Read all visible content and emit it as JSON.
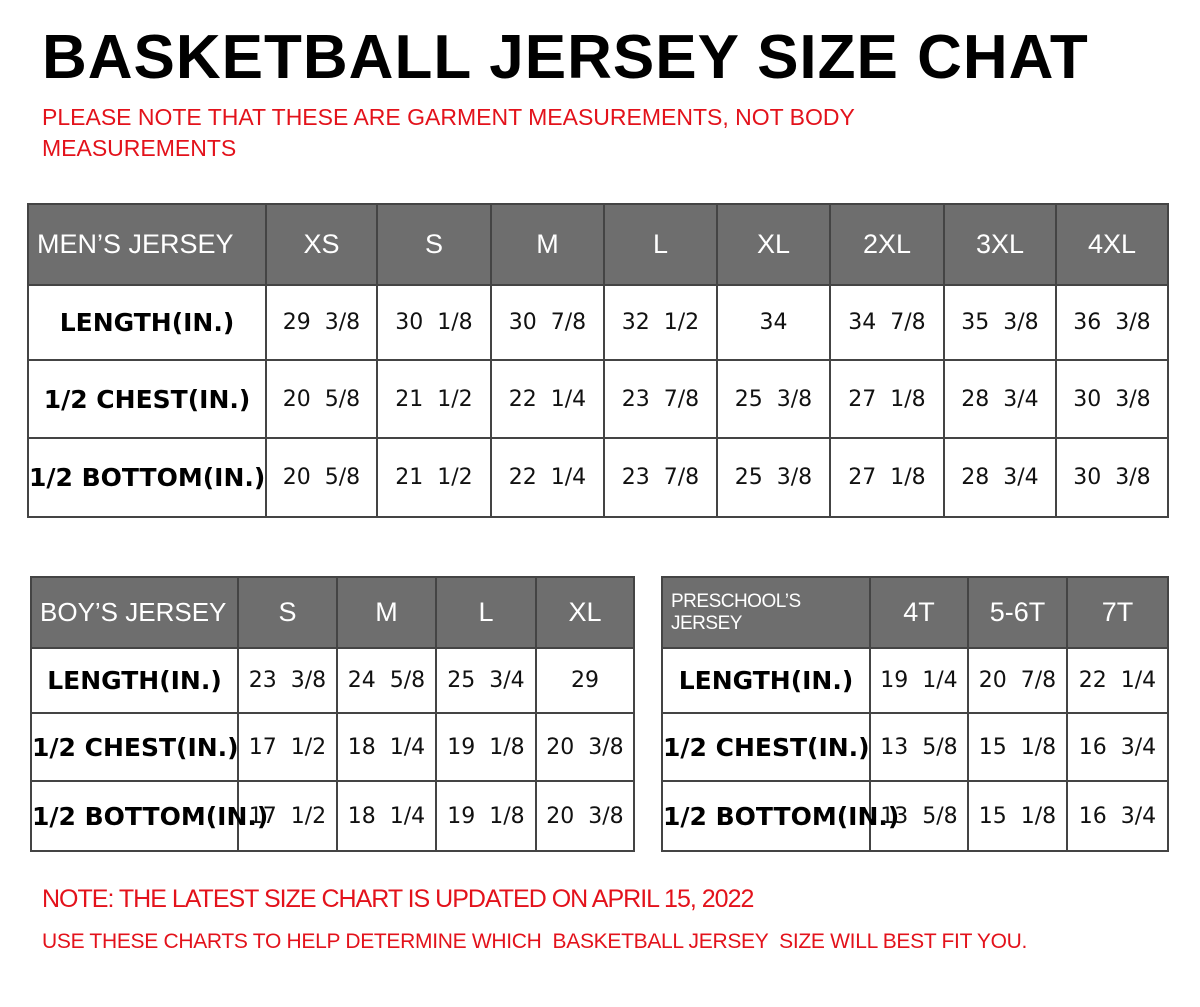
{
  "title": "BASKETBALL JERSEY SIZE CHAT",
  "note_top": "PLEASE NOTE THAT THESE ARE GARMENT MEASUREMENTS, NOT BODY MEASUREMENTS",
  "note_bottom_1": "NOTE: THE LATEST SIZE CHART IS UPDATED ON APRIL 15, 2022",
  "note_bottom_2": "USE THESE CHARTS TO HELP DETERMINE WHICH  BASKETBALL JERSEY  SIZE WILL BEST FIT YOU.",
  "colors": {
    "header_bg": "#6e6e6e",
    "note_red": "#e3121b"
  },
  "tables": [
    {
      "id": "men",
      "label": "MEN’S JERSEY",
      "sizes": [
        "XS",
        "S",
        "M",
        "L",
        "XL",
        "2XL",
        "3XL",
        "4XL"
      ],
      "rows": [
        {
          "label": "LENGTH(IN.)",
          "values": [
            "29  3/8",
            "30  1/8",
            "30  7/8",
            "32  1/2",
            "34",
            "34  7/8",
            "35  3/8",
            "36  3/8"
          ]
        },
        {
          "label": "1/2  CHEST(IN.)",
          "values": [
            "20  5/8",
            "21  1/2",
            "22  1/4",
            "23  7/8",
            "25  3/8",
            "27  1/8",
            "28  3/4",
            "30  3/8"
          ]
        },
        {
          "label": "1/2  BOTTOM(IN.)",
          "values": [
            "20  5/8",
            "21  1/2",
            "22  1/4",
            "23  7/8",
            "25  3/8",
            "27  1/8",
            "28  3/4",
            "30  3/8"
          ]
        }
      ]
    },
    {
      "id": "boy",
      "label": "BOY’S JERSEY",
      "sizes": [
        "S",
        "M",
        "L",
        "XL"
      ],
      "rows": [
        {
          "label": "LENGTH(IN.)",
          "values": [
            "23  3/8",
            "24  5/8",
            "25  3/4",
            "29"
          ]
        },
        {
          "label": "1/2  CHEST(IN.)",
          "values": [
            "17  1/2",
            "18  1/4",
            "19  1/8",
            "20  3/8"
          ]
        },
        {
          "label": "1/2  BOTTOM(IN.)",
          "values": [
            "17  1/2",
            "18  1/4",
            "19  1/8",
            "20  3/8"
          ]
        }
      ]
    },
    {
      "id": "pre",
      "label": "PRESCHOOL’S JERSEY",
      "sizes": [
        "4T",
        "5-6T",
        "7T"
      ],
      "rows": [
        {
          "label": "LENGTH(IN.)",
          "values": [
            "19  1/4",
            "20  7/8",
            "22  1/4"
          ]
        },
        {
          "label": "1/2  CHEST(IN.)",
          "values": [
            "13  5/8",
            "15  1/8",
            "16  3/4"
          ]
        },
        {
          "label": "1/2  BOTTOM(IN.)",
          "values": [
            "13  5/8",
            "15  1/8",
            "16  3/4"
          ]
        }
      ]
    }
  ]
}
